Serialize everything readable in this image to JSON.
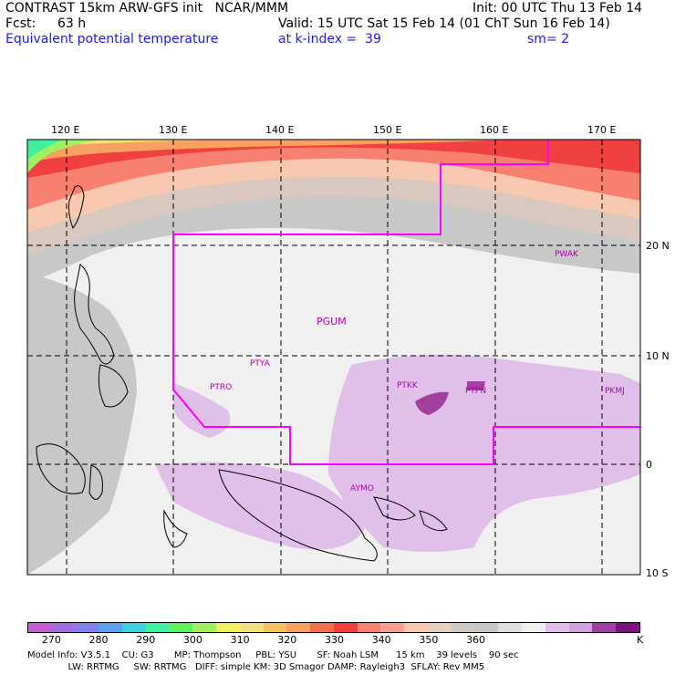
{
  "header": {
    "line1_left": "CONTRAST 15km ARW-GFS init   NCAR/MMM",
    "line1_right": "Init: 00 UTC Thu 13 Feb 14",
    "fcst_label": "Fcst:",
    "fcst_value": "63 h",
    "valid": "Valid: 15 UTC Sat 15 Feb 14 (01 ChT Sun 16 Feb 14)",
    "field_name": "Equivalent potential temperature",
    "level": "at k-index =  39",
    "smooth": "sm= 2"
  },
  "map": {
    "lon_labels": [
      "120 E",
      "130 E",
      "140 E",
      "150 E",
      "160 E",
      "170 E"
    ],
    "lat_labels": [
      "20 N",
      "10 N",
      "0",
      "10 S"
    ],
    "stations": [
      "PGUM",
      "PTYA",
      "PTRO",
      "PTKK",
      "PTPN",
      "PKMJ",
      "PWAK",
      "AYMO"
    ]
  },
  "colorbar": {
    "colors": [
      "#c060d0",
      "#a070e0",
      "#8080f0",
      "#60a0f0",
      "#40d0e0",
      "#40f0a0",
      "#60f060",
      "#a0f060",
      "#f0f060",
      "#f0e080",
      "#f8c060",
      "#f8a060",
      "#f07050",
      "#f04040",
      "#f88070",
      "#f8a090",
      "#f8c8b0",
      "#e8d0c0",
      "#d0c8c0",
      "#c8c8c8",
      "#e0e0e0",
      "#f0f0f0",
      "#e0c0e8",
      "#d0a0e0",
      "#a040a0",
      "#801080"
    ],
    "tick_labels": [
      "270",
      "280",
      "290",
      "300",
      "310",
      "320",
      "330",
      "340",
      "350",
      "360"
    ],
    "unit": "K"
  },
  "footer": {
    "line1": "Model Info: V3.5.1    CU: G3       MP: Thompson     PBL: YSU       SF: Noah LSM      15 km    39 levels    90 sec",
    "line2": "              LW: RRTMG     SW: RRTMG   DIFF: simple KM: 3D Smagor DAMP: Rayleigh3  SFLAY: Rev MM5"
  }
}
